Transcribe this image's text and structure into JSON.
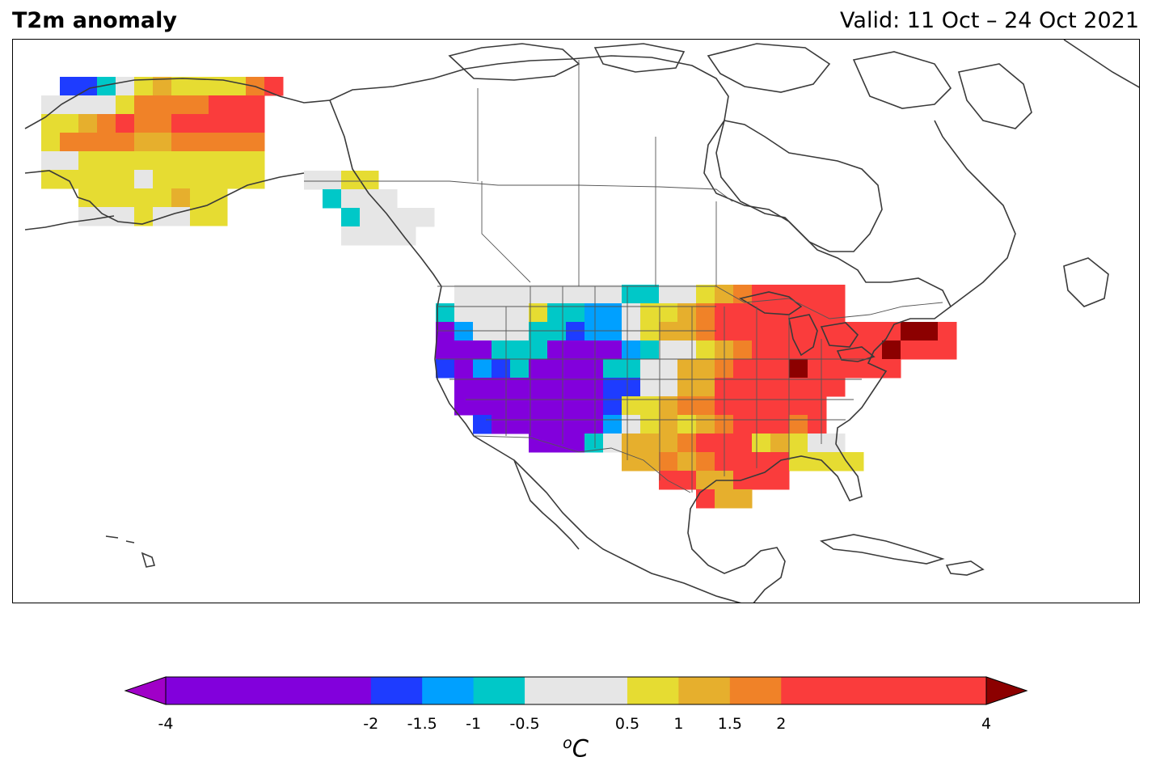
{
  "header": {
    "title": "T2m anomaly",
    "valid": "Valid: 11 Oct – 24 Oct 2021"
  },
  "colorbar": {
    "unit": "C",
    "unit_superscript": "o",
    "ticks": [
      "-4",
      "-2",
      "-1.5",
      "-1",
      "-0.5",
      "0.5",
      "1",
      "1.5",
      "2",
      "4"
    ],
    "bounds": [
      -4,
      -2,
      -1.5,
      -1,
      -0.5,
      0.5,
      1,
      1.5,
      2,
      4
    ],
    "colors": [
      "#8200dc",
      "#1e3cff",
      "#00a0ff",
      "#00c8c8",
      "#e6e6e6",
      "#e6dc32",
      "#e6af2d",
      "#f08228",
      "#fa3c3c"
    ],
    "under_color": "#a000c8",
    "over_color": "#8c0000"
  },
  "map": {
    "region": "North America",
    "cell_legend": {
      "P": "< -2",
      "B": "-2 to -1.5",
      "L": "-1.5 to -1",
      "C": "-1 to -0.5",
      "G": "-0.5 to 0.5",
      "Y": "0.5 to 1",
      "A": "1 to 1.5",
      "O": "1.5 to 2",
      "R": "2 to 4",
      "D": "> 4"
    },
    "alaska_rows": [
      {
        "row": 0,
        "cells": "BBCGYAYYYYOR"
      },
      {
        "row": 1,
        "cells": "GGGGYOOOORRR"
      },
      {
        "row": 2,
        "cells": "YYAOROORRRRR"
      },
      {
        "row": 3,
        "cells": "YOOOOAAOOOOO"
      },
      {
        "row": 4,
        "cells": "GGYYYYYYYYYY"
      },
      {
        "row": 5,
        "cells": "YYYYYGYYYYYY"
      },
      {
        "row": 6,
        "cells": "YYYYYAYY"
      },
      {
        "row": 7,
        "cells": "GGGYGGYY"
      }
    ],
    "canada_cells": "GGYY|CGGG|CGGGG|GGGG",
    "conus_rows": [
      {
        "row": 0,
        "cells": "GGGGGGGGGCCGGYAORRRRR"
      },
      {
        "row": 1,
        "cells": "CGGGGYCCLLGYYAORRRRRRR"
      },
      {
        "row": 2,
        "cells": "PLGGGCCBLLGYAAORRRRRRRRRRDDR"
      },
      {
        "row": 3,
        "cells": "PPPCCCPPPPLCGGYAORRRRRRRDRRR"
      },
      {
        "row": 4,
        "cells": "BPLBCPPPPCCGGAAORRRDRRRRR"
      },
      {
        "row": 5,
        "cells": "PPPPPPPPBBGGAARRRRRRR"
      },
      {
        "row": 6,
        "cells": "PPPPPPPPBYYAOORRRRRR"
      },
      {
        "row": 7,
        "cells": "BPPPPPPLGYAYAORRROR"
      },
      {
        "row": 8,
        "cells": "PPPCGAAAORRRYAYGG"
      },
      {
        "row": 9,
        "cells": "AAOAORRRRYYYY"
      },
      {
        "row": 10,
        "cells": "RRAARRR"
      },
      {
        "row": 11,
        "cells": "RAA"
      }
    ]
  }
}
